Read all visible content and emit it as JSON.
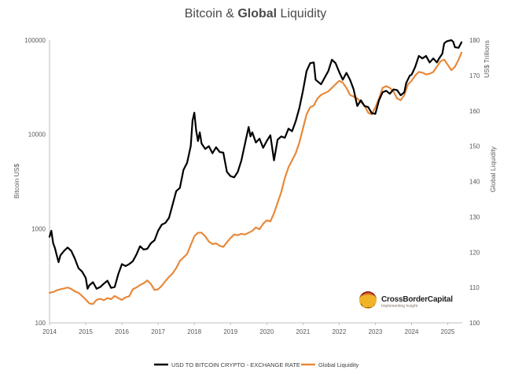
{
  "chart_data": {
    "type": "line",
    "title_parts": [
      "Bitcoin & ",
      "Global",
      " Liquidity"
    ],
    "title": "Bitcoin & Global Liquidity",
    "y_left_label": "Bitcoin US$",
    "y_left_scale": "log",
    "y_left_range": [
      100,
      100000
    ],
    "y_left_ticks": [
      "100000",
      "10000",
      "1000",
      "100"
    ],
    "y_right_label_top": "US$ Trillions",
    "y_right_label": "Global Liquidity",
    "y_right_range": [
      100,
      180
    ],
    "y_right_ticks": [
      "180",
      "170",
      "160",
      "150",
      "140",
      "130",
      "120",
      "110",
      "100"
    ],
    "x_range": [
      2014.0,
      2025.4
    ],
    "x_ticks": [
      "2014",
      "2015",
      "2016",
      "2017",
      "2018",
      "2019",
      "2020",
      "2021",
      "2022",
      "2023",
      "2024",
      "2025"
    ],
    "series": [
      {
        "name": "USD TO BITCOIN CRYPTO - EXCHANGE RATE",
        "axis": "left",
        "color": "#000000",
        "points": [
          [
            2014.0,
            820
          ],
          [
            2014.05,
            950
          ],
          [
            2014.1,
            700
          ],
          [
            2014.15,
            620
          ],
          [
            2014.2,
            520
          ],
          [
            2014.25,
            440
          ],
          [
            2014.3,
            520
          ],
          [
            2014.4,
            580
          ],
          [
            2014.5,
            630
          ],
          [
            2014.6,
            580
          ],
          [
            2014.7,
            480
          ],
          [
            2014.8,
            380
          ],
          [
            2014.9,
            350
          ],
          [
            2015.0,
            300
          ],
          [
            2015.05,
            230
          ],
          [
            2015.1,
            250
          ],
          [
            2015.2,
            270
          ],
          [
            2015.3,
            230
          ],
          [
            2015.4,
            240
          ],
          [
            2015.5,
            260
          ],
          [
            2015.6,
            280
          ],
          [
            2015.7,
            235
          ],
          [
            2015.8,
            240
          ],
          [
            2015.9,
            330
          ],
          [
            2016.0,
            420
          ],
          [
            2016.1,
            400
          ],
          [
            2016.2,
            420
          ],
          [
            2016.3,
            450
          ],
          [
            2016.4,
            530
          ],
          [
            2016.5,
            650
          ],
          [
            2016.6,
            600
          ],
          [
            2016.7,
            610
          ],
          [
            2016.8,
            700
          ],
          [
            2016.9,
            750
          ],
          [
            2017.0,
            950
          ],
          [
            2017.1,
            1100
          ],
          [
            2017.2,
            1150
          ],
          [
            2017.3,
            1300
          ],
          [
            2017.4,
            1800
          ],
          [
            2017.5,
            2500
          ],
          [
            2017.6,
            2700
          ],
          [
            2017.7,
            4200
          ],
          [
            2017.8,
            5000
          ],
          [
            2017.9,
            7500
          ],
          [
            2017.95,
            14000
          ],
          [
            2018.0,
            17000
          ],
          [
            2018.05,
            11000
          ],
          [
            2018.1,
            8500
          ],
          [
            2018.15,
            10500
          ],
          [
            2018.2,
            8000
          ],
          [
            2018.3,
            7000
          ],
          [
            2018.4,
            7500
          ],
          [
            2018.5,
            6300
          ],
          [
            2018.6,
            7300
          ],
          [
            2018.7,
            6500
          ],
          [
            2018.8,
            6400
          ],
          [
            2018.9,
            4000
          ],
          [
            2019.0,
            3600
          ],
          [
            2019.1,
            3500
          ],
          [
            2019.2,
            4000
          ],
          [
            2019.3,
            5300
          ],
          [
            2019.4,
            8000
          ],
          [
            2019.5,
            12000
          ],
          [
            2019.55,
            9500
          ],
          [
            2019.6,
            10500
          ],
          [
            2019.7,
            8200
          ],
          [
            2019.8,
            9000
          ],
          [
            2019.9,
            7200
          ],
          [
            2020.0,
            8500
          ],
          [
            2020.1,
            9800
          ],
          [
            2020.2,
            5300
          ],
          [
            2020.3,
            8800
          ],
          [
            2020.4,
            9500
          ],
          [
            2020.5,
            9200
          ],
          [
            2020.6,
            11500
          ],
          [
            2020.7,
            10800
          ],
          [
            2020.8,
            13800
          ],
          [
            2020.9,
            19000
          ],
          [
            2021.0,
            29000
          ],
          [
            2021.1,
            47000
          ],
          [
            2021.2,
            57000
          ],
          [
            2021.3,
            58000
          ],
          [
            2021.35,
            38000
          ],
          [
            2021.5,
            34000
          ],
          [
            2021.6,
            40000
          ],
          [
            2021.7,
            47000
          ],
          [
            2021.8,
            62000
          ],
          [
            2021.9,
            57000
          ],
          [
            2022.0,
            46000
          ],
          [
            2022.1,
            38000
          ],
          [
            2022.2,
            45000
          ],
          [
            2022.3,
            38000
          ],
          [
            2022.4,
            30000
          ],
          [
            2022.5,
            20000
          ],
          [
            2022.6,
            23000
          ],
          [
            2022.7,
            20000
          ],
          [
            2022.8,
            19500
          ],
          [
            2022.9,
            16800
          ],
          [
            2023.0,
            16500
          ],
          [
            2023.1,
            23000
          ],
          [
            2023.2,
            28000
          ],
          [
            2023.3,
            29000
          ],
          [
            2023.4,
            27000
          ],
          [
            2023.5,
            30000
          ],
          [
            2023.6,
            29500
          ],
          [
            2023.7,
            26000
          ],
          [
            2023.8,
            28000
          ],
          [
            2023.85,
            35000
          ],
          [
            2023.95,
            42000
          ],
          [
            2024.0,
            43000
          ],
          [
            2024.1,
            52000
          ],
          [
            2024.2,
            68000
          ],
          [
            2024.3,
            64000
          ],
          [
            2024.4,
            68000
          ],
          [
            2024.5,
            58000
          ],
          [
            2024.6,
            64000
          ],
          [
            2024.7,
            58000
          ],
          [
            2024.75,
            63000
          ],
          [
            2024.85,
            72000
          ],
          [
            2024.9,
            92000
          ],
          [
            2024.95,
            96000
          ],
          [
            2025.0,
            98000
          ],
          [
            2025.1,
            100000
          ],
          [
            2025.15,
            96000
          ],
          [
            2025.2,
            84000
          ],
          [
            2025.3,
            83000
          ],
          [
            2025.38,
            95000
          ]
        ]
      },
      {
        "name": "Global Liquidity",
        "axis": "right",
        "color": "#e8893a",
        "points": [
          [
            2014.0,
            108.5
          ],
          [
            2014.1,
            108.7
          ],
          [
            2014.2,
            109.2
          ],
          [
            2014.3,
            109.5
          ],
          [
            2014.4,
            109.7
          ],
          [
            2014.5,
            110.0
          ],
          [
            2014.6,
            109.6
          ],
          [
            2014.7,
            108.9
          ],
          [
            2014.8,
            108.5
          ],
          [
            2014.9,
            107.6
          ],
          [
            2015.0,
            106.6
          ],
          [
            2015.1,
            105.5
          ],
          [
            2015.2,
            105.3
          ],
          [
            2015.3,
            106.5
          ],
          [
            2015.4,
            106.8
          ],
          [
            2015.5,
            106.4
          ],
          [
            2015.6,
            107.0
          ],
          [
            2015.7,
            106.7
          ],
          [
            2015.8,
            107.6
          ],
          [
            2015.9,
            107.0
          ],
          [
            2016.0,
            106.5
          ],
          [
            2016.1,
            107.2
          ],
          [
            2016.2,
            107.5
          ],
          [
            2016.3,
            109.5
          ],
          [
            2016.4,
            110.0
          ],
          [
            2016.5,
            110.7
          ],
          [
            2016.6,
            111.2
          ],
          [
            2016.7,
            112.0
          ],
          [
            2016.8,
            111.0
          ],
          [
            2016.9,
            109.3
          ],
          [
            2017.0,
            109.5
          ],
          [
            2017.1,
            110.5
          ],
          [
            2017.2,
            111.8
          ],
          [
            2017.3,
            113.0
          ],
          [
            2017.4,
            114.0
          ],
          [
            2017.5,
            115.5
          ],
          [
            2017.6,
            117.5
          ],
          [
            2017.7,
            118.5
          ],
          [
            2017.8,
            119.5
          ],
          [
            2017.9,
            122.0
          ],
          [
            2018.0,
            124.5
          ],
          [
            2018.1,
            125.5
          ],
          [
            2018.2,
            125.5
          ],
          [
            2018.3,
            124.5
          ],
          [
            2018.4,
            123.0
          ],
          [
            2018.5,
            122.3
          ],
          [
            2018.6,
            122.5
          ],
          [
            2018.7,
            121.8
          ],
          [
            2018.8,
            121.5
          ],
          [
            2018.9,
            122.8
          ],
          [
            2019.0,
            124.0
          ],
          [
            2019.1,
            125.0
          ],
          [
            2019.2,
            124.8
          ],
          [
            2019.3,
            125.2
          ],
          [
            2019.4,
            125.0
          ],
          [
            2019.5,
            125.5
          ],
          [
            2019.6,
            126.0
          ],
          [
            2019.7,
            127.0
          ],
          [
            2019.8,
            126.5
          ],
          [
            2019.9,
            128.0
          ],
          [
            2020.0,
            129.0
          ],
          [
            2020.1,
            128.7
          ],
          [
            2020.2,
            131.0
          ],
          [
            2020.3,
            134.0
          ],
          [
            2020.4,
            137.0
          ],
          [
            2020.5,
            141.0
          ],
          [
            2020.6,
            144.0
          ],
          [
            2020.7,
            146.0
          ],
          [
            2020.8,
            148.0
          ],
          [
            2020.9,
            151.0
          ],
          [
            2021.0,
            155.0
          ],
          [
            2021.1,
            159.0
          ],
          [
            2021.2,
            161.0
          ],
          [
            2021.3,
            161.5
          ],
          [
            2021.4,
            163.5
          ],
          [
            2021.5,
            164.5
          ],
          [
            2021.6,
            165.0
          ],
          [
            2021.7,
            165.5
          ],
          [
            2021.8,
            166.5
          ],
          [
            2021.9,
            167.5
          ],
          [
            2022.0,
            168.5
          ],
          [
            2022.1,
            168.0
          ],
          [
            2022.2,
            166.5
          ],
          [
            2022.3,
            164.5
          ],
          [
            2022.4,
            164.0
          ],
          [
            2022.5,
            163.5
          ],
          [
            2022.6,
            162.5
          ],
          [
            2022.7,
            161.5
          ],
          [
            2022.8,
            159.5
          ],
          [
            2022.9,
            159.0
          ],
          [
            2023.0,
            161.0
          ],
          [
            2023.1,
            163.5
          ],
          [
            2023.2,
            166.5
          ],
          [
            2023.3,
            167.0
          ],
          [
            2023.4,
            166.5
          ],
          [
            2023.5,
            165.5
          ],
          [
            2023.6,
            163.5
          ],
          [
            2023.7,
            163.0
          ],
          [
            2023.8,
            164.5
          ],
          [
            2023.9,
            167.5
          ],
          [
            2024.0,
            168.5
          ],
          [
            2024.1,
            170.0
          ],
          [
            2024.2,
            171.0
          ],
          [
            2024.3,
            170.8
          ],
          [
            2024.4,
            170.3
          ],
          [
            2024.5,
            170.5
          ],
          [
            2024.6,
            171.0
          ],
          [
            2024.7,
            172.5
          ],
          [
            2024.8,
            174.0
          ],
          [
            2024.9,
            174.5
          ],
          [
            2025.0,
            173.0
          ],
          [
            2025.1,
            171.5
          ],
          [
            2025.2,
            172.5
          ],
          [
            2025.3,
            174.5
          ],
          [
            2025.38,
            176.5
          ]
        ]
      }
    ],
    "legend_position": "bottom-center",
    "legend": [
      "USD TO BITCOIN CRYPTO - EXCHANGE RATE",
      "Global Liquidity"
    ]
  },
  "logo": {
    "name": "CrossBorderCapital",
    "tagline": "Implementing Insight",
    "colors": [
      "#8b1a1a",
      "#d8682a",
      "#f0b429",
      "#5a0f1a"
    ]
  }
}
